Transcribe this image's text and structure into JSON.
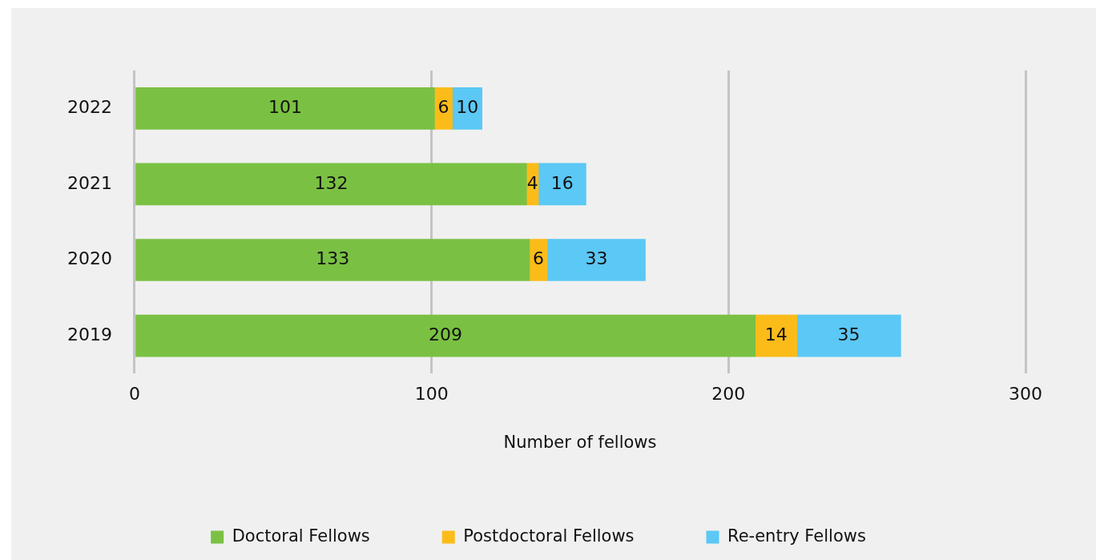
{
  "chart_data": {
    "type": "bar",
    "orientation": "horizontal",
    "stacked": true,
    "categories": [
      "2022",
      "2021",
      "2020",
      "2019"
    ],
    "series": [
      {
        "name": "Doctoral Fellows",
        "color": "#7ac143",
        "values": [
          101,
          132,
          133,
          209
        ]
      },
      {
        "name": "Postdoctoral Fellows",
        "color": "#fbbc1a",
        "values": [
          6,
          4,
          6,
          14
        ]
      },
      {
        "name": "Re-entry Fellows",
        "color": "#5bc8f5",
        "values": [
          10,
          16,
          33,
          35
        ]
      }
    ],
    "xlim": [
      0,
      300
    ],
    "xticks": [
      0,
      100,
      200,
      300
    ],
    "xlabel": "Number of fellows",
    "grid": "x",
    "legend": "bottom",
    "data_labels": true
  }
}
